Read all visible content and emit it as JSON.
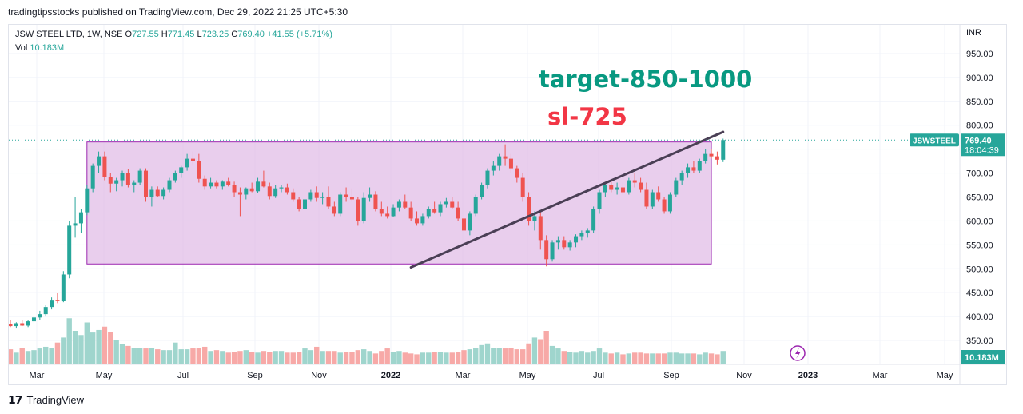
{
  "header": {
    "publisher": "tradingtipsstocks published on TradingView.com, Dec 29, 2022 21:25 UTC+5:30",
    "symbol_line": "JSW STEEL LTD, 1W, NSE",
    "ohlc": {
      "o_label": "O",
      "o": "727.55",
      "h_label": "H",
      "h": "771.45",
      "l_label": "L",
      "l": "723.25",
      "c_label": "C",
      "c": "769.40",
      "change": "+41.55 (+5.71%)"
    },
    "vol_label": "Vol",
    "vol_value": "10.183M"
  },
  "annotations": {
    "target": "target-850-1000",
    "stoploss": "sl-725"
  },
  "price_tag": {
    "ticker": "JSWSTEEL",
    "price": "769.40",
    "countdown": "18:04:39"
  },
  "volume_tag": "10.183M",
  "footer": {
    "brand": "TradingView"
  },
  "colors": {
    "up": "#26a69a",
    "down": "#ef5350",
    "vol_up": "#9fd5cd",
    "vol_down": "#f7a9a7",
    "range_fill": "#e1bee7",
    "range_border": "#9c27b0",
    "trendline": "#4a3f55",
    "target_text": "#089981",
    "sl_text": "#f23645"
  },
  "chart_data": {
    "type": "candlestick",
    "currency": "INR",
    "ylim": [
      330,
      980
    ],
    "y_ticks": [
      "950.00",
      "900.00",
      "850.00",
      "800.00",
      "750.00",
      "700.00",
      "650.00",
      "600.00",
      "550.00",
      "500.00",
      "450.00",
      "400.00",
      "350.00"
    ],
    "x_labels": [
      "Mar",
      "May",
      "Jul",
      "Sep",
      "Nov",
      "2022",
      "Mar",
      "May",
      "Jul",
      "Sep",
      "Nov",
      "2023",
      "Mar",
      "May"
    ],
    "range_box": {
      "top": 765,
      "bottom": 510,
      "x_start": 13,
      "x_end": 119
    },
    "trendline": {
      "from": {
        "index": 68,
        "value": 503
      },
      "to": {
        "index": 121,
        "value": 786
      }
    },
    "series": [
      [
        385,
        392,
        378,
        380,
        1.8
      ],
      [
        380,
        388,
        375,
        386,
        1.4
      ],
      [
        386,
        392,
        380,
        381,
        2.0
      ],
      [
        381,
        393,
        378,
        390,
        1.6
      ],
      [
        390,
        402,
        386,
        398,
        1.7
      ],
      [
        398,
        412,
        393,
        405,
        1.9
      ],
      [
        405,
        425,
        400,
        420,
        2.1
      ],
      [
        420,
        440,
        415,
        435,
        2.0
      ],
      [
        435,
        450,
        428,
        432,
        2.6
      ],
      [
        432,
        495,
        430,
        488,
        3.2
      ],
      [
        488,
        600,
        480,
        590,
        5.5
      ],
      [
        590,
        650,
        565,
        595,
        4.0
      ],
      [
        595,
        625,
        575,
        618,
        3.5
      ],
      [
        618,
        675,
        612,
        668,
        5.0
      ],
      [
        668,
        720,
        660,
        715,
        3.8
      ],
      [
        715,
        745,
        700,
        735,
        4.1
      ],
      [
        735,
        745,
        685,
        692,
        4.5
      ],
      [
        692,
        700,
        660,
        678,
        3.9
      ],
      [
        678,
        690,
        662,
        685,
        2.9
      ],
      [
        685,
        705,
        672,
        700,
        2.4
      ],
      [
        700,
        708,
        670,
        675,
        2.2
      ],
      [
        675,
        685,
        660,
        680,
        2.0
      ],
      [
        680,
        710,
        675,
        705,
        2.0
      ],
      [
        705,
        710,
        640,
        650,
        1.9
      ],
      [
        650,
        672,
        630,
        665,
        2.0
      ],
      [
        665,
        672,
        650,
        652,
        1.8
      ],
      [
        652,
        670,
        645,
        665,
        1.7
      ],
      [
        665,
        690,
        660,
        685,
        1.7
      ],
      [
        685,
        705,
        680,
        700,
        2.6
      ],
      [
        700,
        715,
        690,
        712,
        1.8
      ],
      [
        712,
        740,
        705,
        730,
        1.8
      ],
      [
        730,
        745,
        715,
        725,
        1.9
      ],
      [
        725,
        740,
        680,
        688,
        2.0
      ],
      [
        688,
        695,
        665,
        672,
        2.1
      ],
      [
        672,
        690,
        668,
        680,
        1.6
      ],
      [
        680,
        685,
        668,
        672,
        1.7
      ],
      [
        672,
        685,
        665,
        682,
        1.6
      ],
      [
        682,
        690,
        672,
        675,
        1.4
      ],
      [
        675,
        682,
        650,
        660,
        1.5
      ],
      [
        660,
        670,
        610,
        655,
        1.6
      ],
      [
        655,
        670,
        645,
        668,
        1.7
      ],
      [
        668,
        680,
        660,
        662,
        1.5
      ],
      [
        662,
        690,
        658,
        682,
        1.4
      ],
      [
        682,
        705,
        670,
        672,
        1.6
      ],
      [
        672,
        680,
        645,
        652,
        1.5
      ],
      [
        652,
        675,
        648,
        668,
        1.6
      ],
      [
        668,
        675,
        660,
        670,
        1.6
      ],
      [
        670,
        678,
        655,
        660,
        1.4
      ],
      [
        660,
        668,
        640,
        645,
        1.4
      ],
      [
        645,
        650,
        620,
        625,
        1.5
      ],
      [
        625,
        650,
        620,
        645,
        1.9
      ],
      [
        645,
        665,
        640,
        660,
        1.7
      ],
      [
        660,
        672,
        640,
        648,
        2.1
      ],
      [
        648,
        660,
        635,
        650,
        1.6
      ],
      [
        650,
        672,
        625,
        630,
        1.6
      ],
      [
        630,
        640,
        610,
        615,
        1.6
      ],
      [
        615,
        660,
        610,
        655,
        1.4
      ],
      [
        655,
        670,
        640,
        650,
        1.5
      ],
      [
        650,
        668,
        640,
        645,
        1.5
      ],
      [
        645,
        650,
        590,
        600,
        1.7
      ],
      [
        600,
        660,
        595,
        648,
        1.8
      ],
      [
        648,
        670,
        640,
        655,
        1.6
      ],
      [
        655,
        662,
        620,
        625,
        1.3
      ],
      [
        625,
        640,
        610,
        615,
        1.6
      ],
      [
        615,
        630,
        605,
        610,
        1.9
      ],
      [
        610,
        635,
        608,
        628,
        1.5
      ],
      [
        628,
        645,
        620,
        640,
        1.6
      ],
      [
        640,
        655,
        625,
        628,
        1.4
      ],
      [
        628,
        640,
        600,
        605,
        1.3
      ],
      [
        605,
        620,
        590,
        595,
        1.2
      ],
      [
        595,
        615,
        590,
        610,
        1.4
      ],
      [
        610,
        630,
        605,
        625,
        1.4
      ],
      [
        625,
        640,
        615,
        618,
        1.5
      ],
      [
        618,
        640,
        610,
        635,
        1.5
      ],
      [
        635,
        648,
        628,
        640,
        1.4
      ],
      [
        640,
        650,
        625,
        628,
        1.4
      ],
      [
        628,
        640,
        600,
        605,
        1.5
      ],
      [
        605,
        620,
        555,
        580,
        1.7
      ],
      [
        580,
        620,
        570,
        615,
        1.8
      ],
      [
        615,
        655,
        610,
        650,
        2.0
      ],
      [
        650,
        680,
        645,
        675,
        2.3
      ],
      [
        675,
        710,
        668,
        705,
        2.5
      ],
      [
        705,
        725,
        695,
        715,
        2.0
      ],
      [
        715,
        740,
        705,
        735,
        2.0
      ],
      [
        735,
        760,
        715,
        730,
        1.9
      ],
      [
        730,
        740,
        700,
        710,
        2.0
      ],
      [
        710,
        715,
        680,
        690,
        1.8
      ],
      [
        690,
        700,
        640,
        650,
        1.8
      ],
      [
        650,
        660,
        590,
        600,
        2.5
      ],
      [
        600,
        620,
        580,
        610,
        3.2
      ],
      [
        610,
        620,
        540,
        560,
        3.0
      ],
      [
        560,
        570,
        505,
        520,
        4.0
      ],
      [
        520,
        560,
        515,
        555,
        2.2
      ],
      [
        555,
        568,
        540,
        560,
        1.9
      ],
      [
        560,
        568,
        540,
        545,
        1.6
      ],
      [
        545,
        560,
        538,
        555,
        1.5
      ],
      [
        555,
        572,
        545,
        568,
        1.4
      ],
      [
        568,
        580,
        560,
        575,
        1.6
      ],
      [
        575,
        585,
        565,
        580,
        1.4
      ],
      [
        580,
        630,
        575,
        625,
        1.6
      ],
      [
        625,
        665,
        615,
        660,
        1.9
      ],
      [
        660,
        680,
        650,
        675,
        1.4
      ],
      [
        675,
        685,
        660,
        665,
        1.3
      ],
      [
        665,
        680,
        655,
        670,
        1.4
      ],
      [
        670,
        680,
        655,
        660,
        1.2
      ],
      [
        660,
        690,
        655,
        685,
        1.3
      ],
      [
        685,
        700,
        670,
        680,
        1.4
      ],
      [
        680,
        690,
        660,
        665,
        1.4
      ],
      [
        665,
        680,
        625,
        630,
        1.3
      ],
      [
        630,
        665,
        625,
        660,
        1.3
      ],
      [
        660,
        672,
        640,
        645,
        1.3
      ],
      [
        645,
        650,
        615,
        620,
        1.3
      ],
      [
        620,
        660,
        615,
        655,
        1.4
      ],
      [
        655,
        690,
        650,
        685,
        1.4
      ],
      [
        685,
        705,
        675,
        700,
        1.3
      ],
      [
        700,
        720,
        690,
        712,
        1.3
      ],
      [
        712,
        725,
        700,
        705,
        1.3
      ],
      [
        705,
        730,
        700,
        725,
        1.2
      ],
      [
        725,
        750,
        720,
        740,
        1.4
      ],
      [
        740,
        750,
        730,
        735,
        1.3
      ],
      [
        735,
        745,
        718,
        728,
        1.2
      ],
      [
        728,
        772,
        723,
        769,
        1.6
      ]
    ]
  }
}
